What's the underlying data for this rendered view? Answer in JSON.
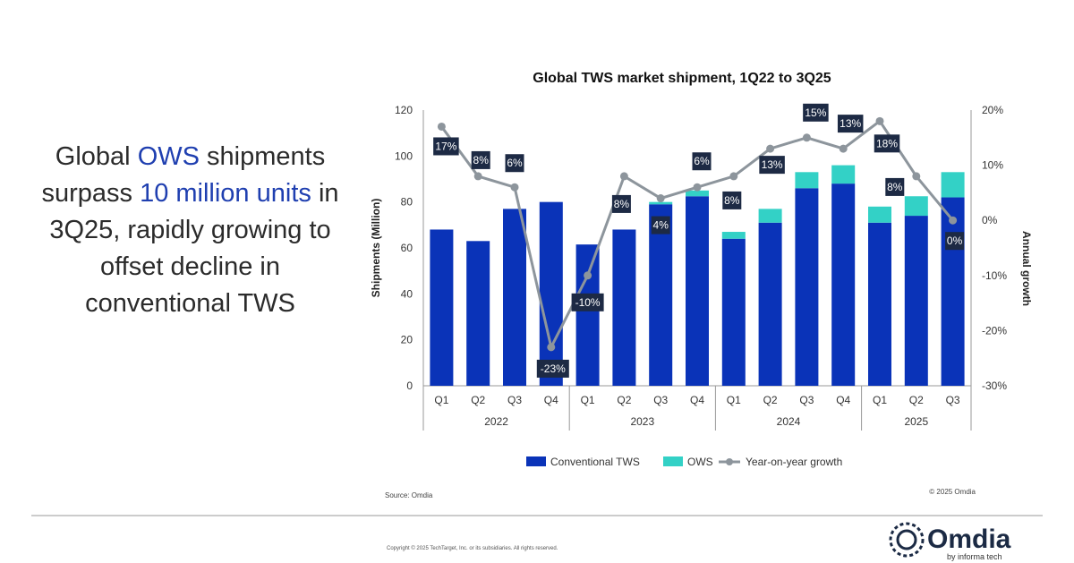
{
  "headline": {
    "part1": "Global ",
    "highlight1": "OWS",
    "part2": " shipments surpass ",
    "highlight2": "10 million units",
    "part3": " in 3Q25, rapidly growing to offset decline in conventional TWS"
  },
  "chart_data": {
    "type": "bar",
    "stacked": true,
    "title": "Global TWS market shipment, 1Q22 to 3Q25",
    "ylabel": "Shipments (Million)",
    "y2label": "Annual growth",
    "ylim": [
      0,
      120
    ],
    "yticks": [
      "0",
      "20",
      "40",
      "60",
      "80",
      "100",
      "120"
    ],
    "y2lim": [
      -30,
      20
    ],
    "y2ticks": [
      "-30%",
      "-20%",
      "-10%",
      "0%",
      "10%",
      "20%"
    ],
    "categories": [
      "Q1",
      "Q2",
      "Q3",
      "Q4",
      "Q1",
      "Q2",
      "Q3",
      "Q4",
      "Q1",
      "Q2",
      "Q3",
      "Q4",
      "Q1",
      "Q2",
      "Q3"
    ],
    "groups": [
      {
        "label": "2022",
        "count": 4
      },
      {
        "label": "2023",
        "count": 4
      },
      {
        "label": "2024",
        "count": 4
      },
      {
        "label": "2025",
        "count": 3
      }
    ],
    "series": [
      {
        "name": "Conventional TWS",
        "type": "bar",
        "color": "#0a33b8",
        "values": [
          68,
          63,
          77,
          80,
          61.5,
          68,
          79,
          82.5,
          64,
          71,
          86,
          88,
          71,
          74,
          82
        ]
      },
      {
        "name": "OWS",
        "type": "bar",
        "color": "#33d1c6",
        "values": [
          0,
          0,
          0,
          0,
          0,
          0,
          1,
          2.5,
          3,
          6,
          7,
          8,
          7,
          8.5,
          11
        ]
      },
      {
        "name": "Year-on-year growth",
        "type": "line",
        "axis": "right",
        "color": "#8d959c",
        "values": [
          17,
          8,
          6,
          -23,
          -10,
          8,
          4,
          6,
          8,
          13,
          15,
          13,
          18,
          8,
          0
        ],
        "labels": [
          "17%",
          "8%",
          "6%",
          "-23%",
          "-10%",
          "8%",
          "4%",
          "6%",
          "8%",
          "13%",
          "15%",
          "13%",
          "18%",
          "8%",
          "0%"
        ]
      }
    ],
    "legend": "bottom",
    "grid": false
  },
  "footer": {
    "source": "Source: Omdia",
    "chart_copyright": "© 2025 Omdia",
    "copyright": "Copyright © 2025 TechTarget, Inc. or its subsidiaries. All rights reserved.",
    "logo_text": "Omdia",
    "logo_subtext": "by informa tech"
  }
}
